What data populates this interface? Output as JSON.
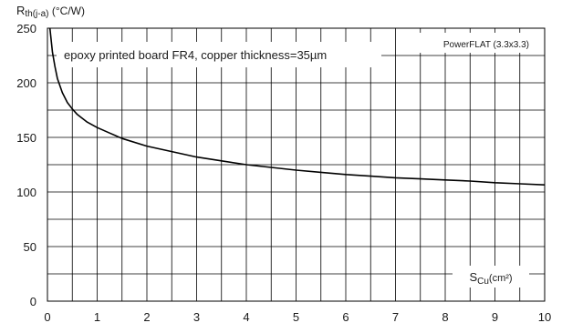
{
  "chart_data": {
    "type": "line",
    "title": "",
    "xlabel": "SCu(cm²)",
    "xlabel_main": "S",
    "xlabel_sub": "Cu",
    "xlabel_unit": "(cm²)",
    "ylabel": "Rth(j-a) (°C/W)",
    "ylabel_main": "R",
    "ylabel_sub": "th(j-a)",
    "ylabel_unit": " (°C/W)",
    "xlim": [
      0,
      10
    ],
    "ylim": [
      0,
      250
    ],
    "x_ticks": [
      0,
      1,
      2,
      3,
      4,
      5,
      6,
      7,
      8,
      9,
      10
    ],
    "y_ticks": [
      0,
      50,
      100,
      150,
      200,
      250
    ],
    "grid": true,
    "grid_x_step": 0.5,
    "grid_y_step": 25,
    "line_color": "#000000",
    "annotations": [
      "epoxy printed board FR4, copper thickness=35µm",
      "PowerFLAT (3.3x3.3)"
    ],
    "series": [
      {
        "x": [
          0.05,
          0.1,
          0.15,
          0.2,
          0.3,
          0.4,
          0.5,
          0.6,
          0.8,
          1.0,
          1.25,
          1.5,
          2.0,
          2.5,
          3.0,
          3.5,
          4.0,
          4.5,
          5.0,
          5.5,
          6.0,
          6.5,
          7.0,
          7.5,
          8.0,
          8.5,
          9.0,
          9.5,
          10.0
        ],
        "y": [
          250,
          228,
          215,
          204,
          191,
          182,
          176,
          171,
          164,
          159,
          154,
          149,
          142,
          137,
          132,
          128.5,
          125,
          122.5,
          120,
          118,
          116,
          114.5,
          113,
          112,
          111,
          110,
          108.5,
          107.5,
          106.5
        ]
      }
    ]
  }
}
